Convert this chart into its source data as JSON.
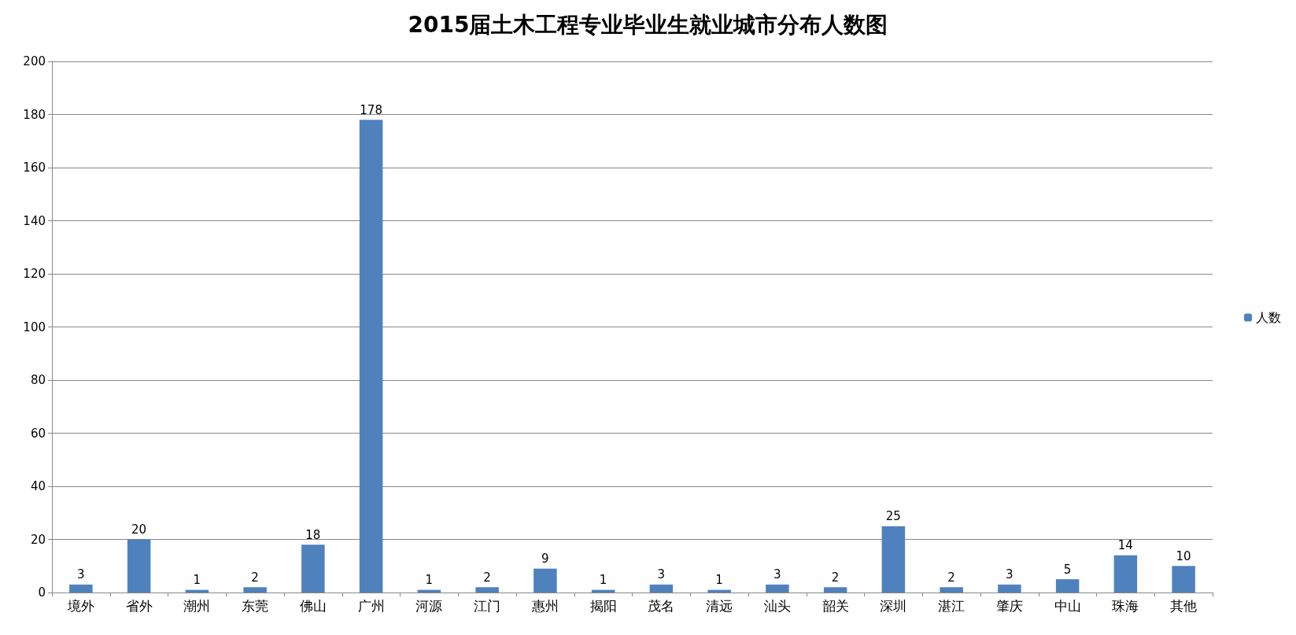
{
  "chart_data": {
    "type": "bar",
    "title": "2015届土木工程专业毕业生就业城市分布人数图",
    "categories": [
      "境外",
      "省外",
      "潮州",
      "东莞",
      "佛山",
      "广州",
      "河源",
      "江门",
      "惠州",
      "揭阳",
      "茂名",
      "清远",
      "汕头",
      "韶关",
      "深圳",
      "湛江",
      "肇庆",
      "中山",
      "珠海",
      "其他"
    ],
    "series": [
      {
        "name": "人数",
        "color": "#4f81bd",
        "values": [
          3,
          20,
          1,
          2,
          18,
          178,
          1,
          2,
          9,
          1,
          3,
          1,
          3,
          2,
          25,
          2,
          3,
          5,
          14,
          10
        ]
      }
    ],
    "ylim": [
      0,
      200
    ],
    "yticks": [
      0,
      20,
      40,
      60,
      80,
      100,
      120,
      140,
      160,
      180,
      200
    ],
    "grid": "y",
    "legend": "right",
    "data_labels": true
  }
}
